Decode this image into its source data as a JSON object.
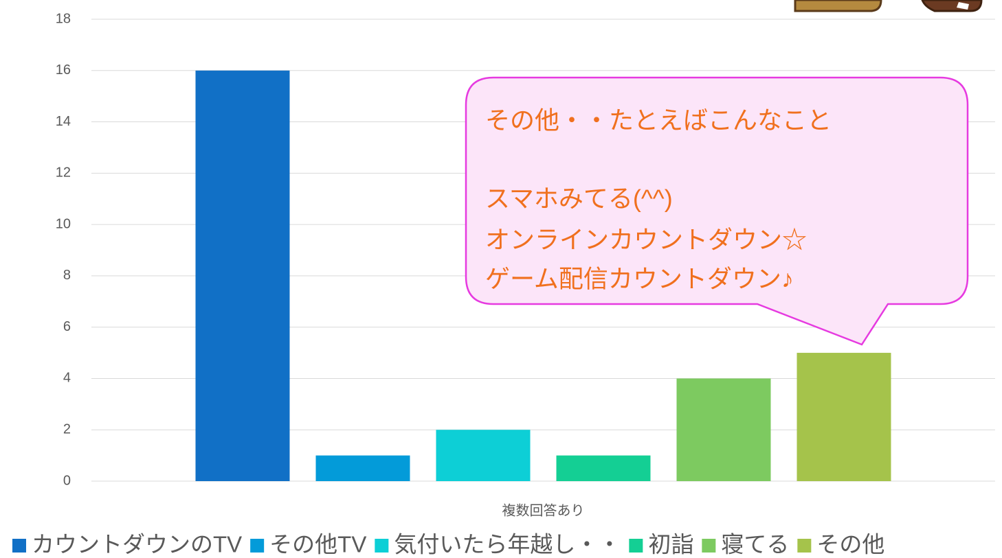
{
  "chart_data": {
    "type": "bar",
    "categories": [
      "複数回答あり"
    ],
    "series": [
      {
        "name": "カウントダウンのTV",
        "color": "#1170c6",
        "values": [
          16
        ]
      },
      {
        "name": "その他TV",
        "color": "#039bd9",
        "values": [
          1
        ]
      },
      {
        "name": "気付いたら年越し・・",
        "color": "#0dcfd6",
        "values": [
          2
        ]
      },
      {
        "name": "初詣",
        "color": "#14cf94",
        "values": [
          1
        ]
      },
      {
        "name": "寝てる",
        "color": "#7dca60",
        "values": [
          4
        ]
      },
      {
        "name": "その他",
        "color": "#a5c34b",
        "values": [
          5
        ]
      }
    ],
    "ylim": [
      0,
      18
    ],
    "yticks": [
      0,
      2,
      4,
      6,
      8,
      10,
      12,
      14,
      16,
      18
    ],
    "grid": true,
    "legend": "bottom",
    "annotation": [
      "その他・・たとえばこんなこと",
      "スマホみてる(^^)",
      "オンラインカウントダウン☆",
      "ゲーム配信カウントダウン♪"
    ]
  }
}
